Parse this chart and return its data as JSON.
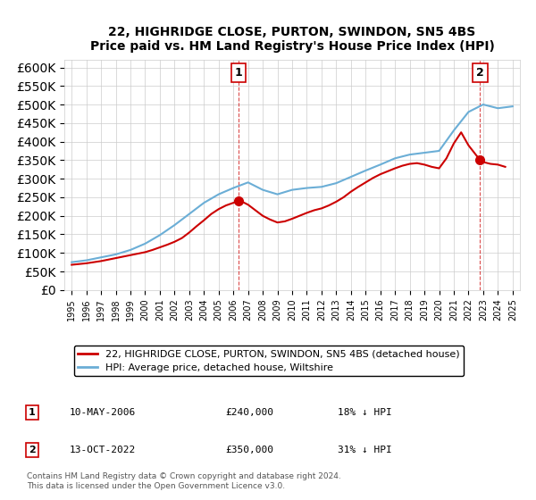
{
  "title": "22, HIGHRIDGE CLOSE, PURTON, SWINDON, SN5 4BS",
  "subtitle": "Price paid vs. HM Land Registry's House Price Index (HPI)",
  "hpi_label": "HPI: Average price, detached house, Wiltshire",
  "property_label": "22, HIGHRIDGE CLOSE, PURTON, SWINDON, SN5 4BS (detached house)",
  "hpi_color": "#6baed6",
  "property_color": "#cc0000",
  "purchase1_date": "10-MAY-2006",
  "purchase1_price": 240000,
  "purchase1_note": "18% ↓ HPI",
  "purchase2_date": "13-OCT-2022",
  "purchase2_price": 350000,
  "purchase2_note": "31% ↓ HPI",
  "purchase1_year": 2006.36,
  "purchase2_year": 2022.79,
  "ylim": [
    0,
    620000
  ],
  "yticks": [
    0,
    50000,
    100000,
    150000,
    200000,
    250000,
    300000,
    350000,
    400000,
    450000,
    500000,
    550000,
    600000
  ],
  "footer": "Contains HM Land Registry data © Crown copyright and database right 2024.\nThis data is licensed under the Open Government Licence v3.0.",
  "hpi_years": [
    1995,
    1996,
    1997,
    1998,
    1999,
    2000,
    2001,
    2002,
    2003,
    2004,
    2005,
    2006,
    2007,
    2008,
    2009,
    2010,
    2011,
    2012,
    2013,
    2014,
    2015,
    2016,
    2017,
    2018,
    2019,
    2020,
    2021,
    2022,
    2023,
    2024,
    2025
  ],
  "hpi_values": [
    75000,
    80000,
    88000,
    96000,
    108000,
    125000,
    148000,
    175000,
    205000,
    235000,
    258000,
    275000,
    290000,
    270000,
    258000,
    270000,
    275000,
    278000,
    288000,
    305000,
    322000,
    338000,
    355000,
    365000,
    370000,
    375000,
    430000,
    480000,
    500000,
    490000,
    495000
  ],
  "prop_years": [
    1995,
    1995.5,
    1996,
    1996.5,
    1997,
    1997.5,
    1998,
    1998.5,
    1999,
    1999.5,
    2000,
    2000.5,
    2001,
    2001.5,
    2002,
    2002.5,
    2003,
    2003.5,
    2004,
    2004.5,
    2005,
    2005.5,
    2006,
    2006.36,
    2006.5,
    2007,
    2007.5,
    2008,
    2008.5,
    2009,
    2009.5,
    2010,
    2010.5,
    2011,
    2011.5,
    2012,
    2012.5,
    2013,
    2013.5,
    2014,
    2014.5,
    2015,
    2015.5,
    2016,
    2016.5,
    2017,
    2017.5,
    2018,
    2018.5,
    2019,
    2019.5,
    2020,
    2020.5,
    2021,
    2021.5,
    2022,
    2022.79,
    2023,
    2023.5,
    2024,
    2024.5
  ],
  "prop_values": [
    68000,
    70000,
    72000,
    75000,
    78000,
    82000,
    86000,
    90000,
    94000,
    98000,
    102000,
    108000,
    115000,
    122000,
    130000,
    140000,
    155000,
    172000,
    188000,
    205000,
    218000,
    228000,
    235000,
    240000,
    240000,
    230000,
    215000,
    200000,
    190000,
    182000,
    185000,
    192000,
    200000,
    208000,
    215000,
    220000,
    228000,
    238000,
    250000,
    265000,
    278000,
    290000,
    302000,
    312000,
    320000,
    328000,
    335000,
    340000,
    342000,
    338000,
    332000,
    328000,
    355000,
    395000,
    425000,
    390000,
    350000,
    345000,
    340000,
    338000,
    332000
  ]
}
